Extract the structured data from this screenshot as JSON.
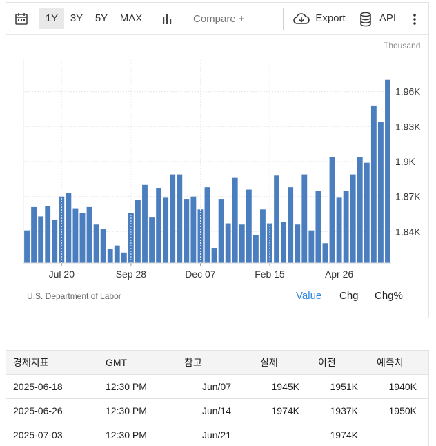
{
  "toolbar": {
    "ranges": [
      "1Y",
      "3Y",
      "5Y",
      "MAX"
    ],
    "active_range": "1Y",
    "compare_placeholder": "Compare +",
    "export_label": "Export",
    "api_label": "API",
    "icons": [
      "calendar-icon",
      "bar-chart-icon",
      "cloud-download-icon",
      "database-icon",
      "more-vertical-icon"
    ]
  },
  "chart_data": {
    "type": "bar",
    "unit_label": "Thousand",
    "x_tick_labels": [
      "Jul 20",
      "Sep 28",
      "Dec 07",
      "Feb 15",
      "Apr 26"
    ],
    "y_tick_labels": [
      "1.84K",
      "1.87K",
      "1.9K",
      "1.93K",
      "1.96K"
    ],
    "y_ticks": [
      1840,
      1870,
      1900,
      1930,
      1960
    ],
    "ylim": [
      1813,
      1987
    ],
    "bar_color": "#4a7ebf",
    "grid": true,
    "values": [
      1841,
      1861,
      1853,
      1862,
      1850,
      1870,
      1873,
      1860,
      1856,
      1861,
      1846,
      1842,
      1825,
      1828,
      1822,
      1856,
      1867,
      1880,
      1852,
      1877,
      1869,
      1889,
      1889,
      1868,
      1870,
      1859,
      1878,
      1826,
      1868,
      1847,
      1886,
      1846,
      1876,
      1837,
      1859,
      1847,
      1888,
      1848,
      1878,
      1846,
      1889,
      1841,
      1875,
      1830,
      1904,
      1869,
      1875,
      1889,
      1904,
      1899,
      1948,
      1934,
      1970
    ]
  },
  "footer": {
    "source": "U.S. Department of Labor",
    "modes": [
      "Value",
      "Chg",
      "Chg%"
    ],
    "selected_mode": "Value"
  },
  "table": {
    "headers": [
      "경제지표",
      "GMT",
      "참고",
      "실제",
      "이전",
      "예측치"
    ],
    "rows": [
      [
        "2025-06-18",
        "12:30 PM",
        "Jun/07",
        "1945K",
        "1951K",
        "1940K"
      ],
      [
        "2025-06-26",
        "12:30 PM",
        "Jun/14",
        "1974K",
        "1937K",
        "1950K"
      ],
      [
        "2025-07-03",
        "12:30 PM",
        "Jun/21",
        "",
        "1974K",
        ""
      ]
    ]
  }
}
